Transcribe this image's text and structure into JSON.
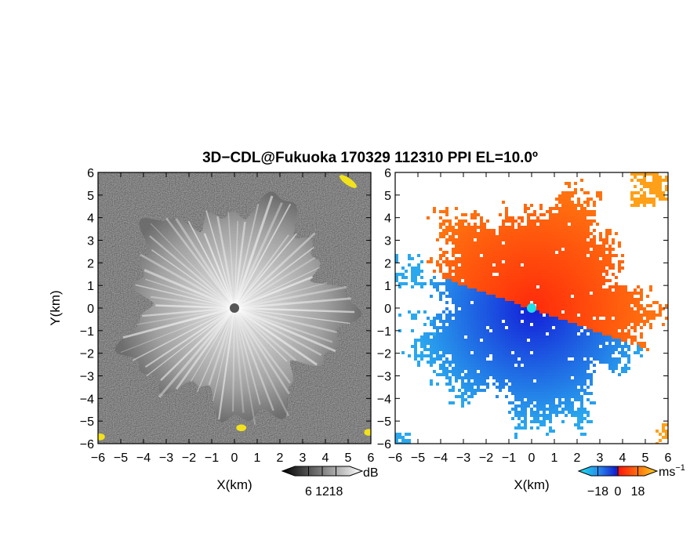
{
  "title": "3D−CDL@Fukuoka 170329 112310 PPI EL=10.0º",
  "colors": {
    "snr_low": "#101010",
    "snr_high": "#e6e6e6",
    "hot_spot": "#f2e21b",
    "vel_negative_strong": "#1320d8",
    "vel_negative_weak": "#2aa8ee",
    "vel_zero_marker": "#1ee0e8",
    "vel_positive_weak": "#ff7a10",
    "vel_positive_strong": "#ff2a0a",
    "vel_far_positive": "#ffa018"
  },
  "chart_data": [
    {
      "type": "heatmap",
      "name": "snr-panel",
      "xlabel": "X(km)",
      "ylabel": "Y(km)",
      "xlim": [
        -6,
        6
      ],
      "ylim": [
        -6,
        6
      ],
      "x_ticks": [
        -6,
        -5,
        -4,
        -3,
        -2,
        -1,
        0,
        1,
        2,
        3,
        4,
        5,
        6
      ],
      "y_ticks": [
        -6,
        -5,
        -4,
        -3,
        -2,
        -1,
        0,
        1,
        2,
        3,
        4,
        5,
        6
      ],
      "colorbar": {
        "unit": "dB",
        "ticks": [
          6,
          12,
          18
        ],
        "range": [
          0,
          24
        ]
      },
      "echo_radius_km": 5.2,
      "radar_location": [
        0,
        0
      ]
    },
    {
      "type": "heatmap",
      "name": "velocity-panel",
      "xlabel": "X(km)",
      "xlim": [
        -6,
        6
      ],
      "ylim": [
        -6,
        6
      ],
      "x_ticks": [
        -6,
        -5,
        -4,
        -3,
        -2,
        -1,
        0,
        1,
        2,
        3,
        4,
        5,
        6
      ],
      "y_ticks": [
        -6,
        -5,
        -4,
        -3,
        -2,
        -1,
        0,
        1,
        2,
        3,
        4,
        5,
        6
      ],
      "colorbar": {
        "unit": "ms",
        "unit_exponent": "−1",
        "ticks": [
          -18,
          0,
          18
        ],
        "tick_labels": [
          "−18",
          "0",
          "18"
        ],
        "range": [
          -24,
          24
        ]
      },
      "radar_location": [
        0,
        0
      ]
    }
  ]
}
